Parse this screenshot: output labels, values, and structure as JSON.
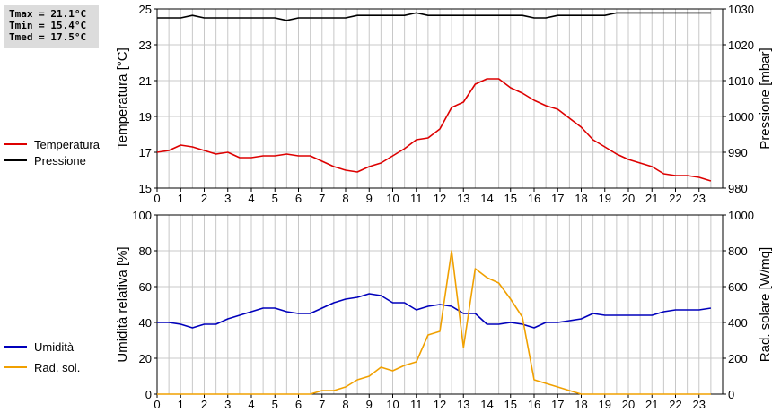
{
  "stats": {
    "tmax": "Tmax = 21.1°C",
    "tmin": "Tmin = 15.4°C",
    "tmed": "Tmed = 17.5°C"
  },
  "colors": {
    "temperature": "#dd0000",
    "pressure": "#000000",
    "humidity": "#0000bb",
    "radiation": "#f0a000",
    "grid": "#c8c8c8"
  },
  "chart_data": [
    {
      "type": "line",
      "title": "",
      "x_ticks": [
        "0",
        "1",
        "2",
        "3",
        "4",
        "5",
        "6",
        "7",
        "8",
        "9",
        "10",
        "11",
        "12",
        "13",
        "14",
        "15",
        "16",
        "17",
        "18",
        "19",
        "20",
        "21",
        "22",
        "23"
      ],
      "xlim": [
        0,
        24
      ],
      "ylabel_left": "Temperatura [°C]",
      "ylabel_right": "Pressione [mbar]",
      "ylim_left": [
        15,
        25
      ],
      "ylim_right": [
        980,
        1030
      ],
      "y_ticks_left": [
        "15",
        "17",
        "19",
        "21",
        "23",
        "25"
      ],
      "y_ticks_right": [
        "980",
        "990",
        "1000",
        "1010",
        "1020",
        "1030"
      ],
      "grid": true,
      "legend_position": "left",
      "series": [
        {
          "name": "Temperatura",
          "axis": "left",
          "x": [
            0,
            0.5,
            1,
            1.5,
            2,
            2.5,
            3,
            3.5,
            4,
            4.5,
            5,
            5.5,
            6,
            6.5,
            7,
            7.5,
            8,
            8.5,
            9,
            9.5,
            10,
            10.5,
            11,
            11.5,
            12,
            12.5,
            13,
            13.5,
            14,
            14.5,
            15,
            15.5,
            16,
            16.5,
            17,
            17.5,
            18,
            18.5,
            19,
            19.5,
            20,
            20.5,
            21,
            21.5,
            22,
            22.5,
            23,
            23.5
          ],
          "y": [
            17.0,
            17.1,
            17.4,
            17.3,
            17.1,
            16.9,
            17.0,
            16.7,
            16.7,
            16.8,
            16.8,
            16.9,
            16.8,
            16.8,
            16.5,
            16.2,
            16.0,
            15.9,
            16.2,
            16.4,
            16.8,
            17.2,
            17.7,
            17.8,
            18.3,
            19.5,
            19.8,
            20.8,
            21.1,
            21.1,
            20.6,
            20.3,
            19.9,
            19.6,
            19.4,
            18.9,
            18.4,
            17.7,
            17.3,
            16.9,
            16.6,
            16.4,
            16.2,
            15.8,
            15.7,
            15.7,
            15.6,
            15.4
          ]
        },
        {
          "name": "Pressione",
          "axis": "right",
          "x": [
            0,
            0.5,
            1,
            1.5,
            2,
            2.5,
            3,
            3.5,
            4,
            4.5,
            5,
            5.5,
            6,
            6.5,
            7,
            7.5,
            8,
            8.5,
            9,
            9.5,
            10,
            10.5,
            11,
            11.5,
            12,
            12.5,
            13,
            13.5,
            14,
            14.5,
            15,
            15.5,
            16,
            16.5,
            17,
            17.5,
            18,
            18.5,
            19,
            19.5,
            20,
            20.5,
            21,
            21.5,
            22,
            22.5,
            23,
            23.5
          ],
          "y": [
            1027.5,
            1027.5,
            1027.5,
            1028.2,
            1027.5,
            1027.5,
            1027.5,
            1027.5,
            1027.5,
            1027.5,
            1027.5,
            1026.8,
            1027.5,
            1027.5,
            1027.5,
            1027.5,
            1027.5,
            1028.2,
            1028.2,
            1028.2,
            1028.2,
            1028.2,
            1028.9,
            1028.2,
            1028.2,
            1028.2,
            1028.2,
            1028.2,
            1028.2,
            1028.2,
            1028.2,
            1028.2,
            1027.5,
            1027.5,
            1028.2,
            1028.2,
            1028.2,
            1028.2,
            1028.2,
            1028.9,
            1028.9,
            1028.9,
            1028.9,
            1028.9,
            1028.9,
            1028.9,
            1028.9,
            1028.9
          ]
        }
      ]
    },
    {
      "type": "line",
      "title": "",
      "x_ticks": [
        "0",
        "1",
        "2",
        "3",
        "4",
        "5",
        "6",
        "7",
        "8",
        "9",
        "10",
        "11",
        "12",
        "13",
        "14",
        "15",
        "16",
        "17",
        "18",
        "19",
        "20",
        "21",
        "22",
        "23"
      ],
      "xlim": [
        0,
        24
      ],
      "ylabel_left": "Umidità relativa [%]",
      "ylabel_right": "Rad. solare [W/mq]",
      "ylim_left": [
        0,
        100
      ],
      "ylim_right": [
        0,
        1000
      ],
      "y_ticks_left": [
        "0",
        "20",
        "40",
        "60",
        "80",
        "100"
      ],
      "y_ticks_right": [
        "0",
        "200",
        "400",
        "600",
        "800",
        "1000"
      ],
      "grid": true,
      "legend_position": "left",
      "series": [
        {
          "name": "Umidità",
          "axis": "left",
          "x": [
            0,
            0.5,
            1,
            1.5,
            2,
            2.5,
            3,
            3.5,
            4,
            4.5,
            5,
            5.5,
            6,
            6.5,
            7,
            7.5,
            8,
            8.5,
            9,
            9.5,
            10,
            10.5,
            11,
            11.5,
            12,
            12.5,
            13,
            13.5,
            14,
            14.5,
            15,
            15.5,
            16,
            16.5,
            17,
            17.5,
            18,
            18.5,
            19,
            19.5,
            20,
            20.5,
            21,
            21.5,
            22,
            22.5,
            23,
            23.5
          ],
          "y": [
            40,
            40,
            39,
            37,
            39,
            39,
            42,
            44,
            46,
            48,
            48,
            46,
            45,
            45,
            48,
            51,
            53,
            54,
            56,
            55,
            51,
            51,
            47,
            49,
            50,
            49,
            45,
            45,
            39,
            39,
            40,
            39,
            37,
            40,
            40,
            41,
            42,
            45,
            44,
            44,
            44,
            44,
            44,
            46,
            47,
            47,
            47,
            48
          ]
        },
        {
          "name": "Rad. sol.",
          "axis": "right",
          "x": [
            0,
            0.5,
            1,
            1.5,
            2,
            2.5,
            3,
            3.5,
            4,
            4.5,
            5,
            5.5,
            6,
            6.5,
            7,
            7.5,
            8,
            8.5,
            9,
            9.5,
            10,
            10.5,
            11,
            11.5,
            12,
            12.5,
            13,
            13.5,
            14,
            14.5,
            15,
            15.5,
            16,
            16.5,
            17,
            17.5,
            18,
            18.5,
            19,
            19.5,
            20,
            20.5,
            21,
            21.5,
            22,
            22.5,
            23,
            23.5
          ],
          "y": [
            0,
            0,
            0,
            0,
            0,
            0,
            0,
            0,
            0,
            0,
            0,
            0,
            0,
            0,
            20,
            20,
            40,
            80,
            100,
            150,
            130,
            160,
            180,
            330,
            350,
            800,
            260,
            700,
            650,
            620,
            530,
            430,
            80,
            60,
            40,
            20,
            0,
            0,
            0,
            0,
            0,
            0,
            0,
            0,
            0,
            0,
            0,
            0
          ]
        }
      ]
    }
  ]
}
